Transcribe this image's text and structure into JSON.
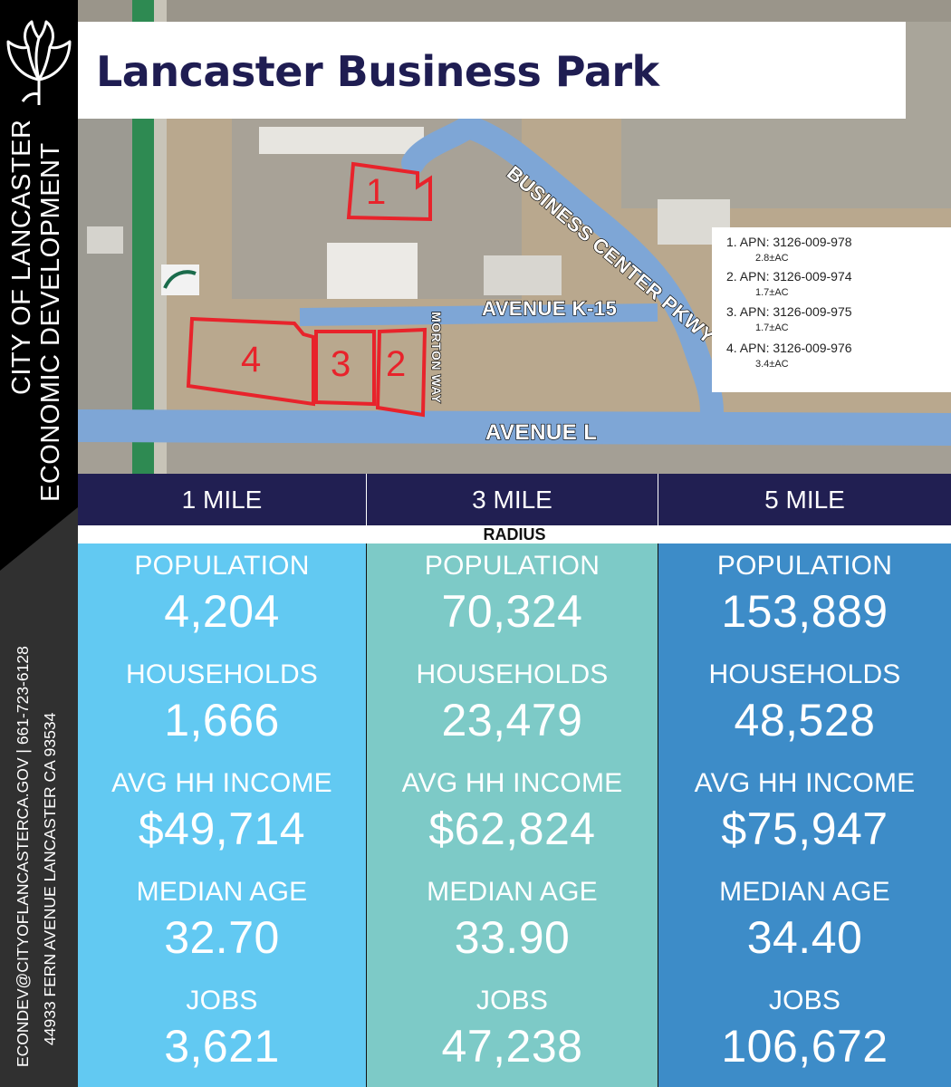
{
  "organization": {
    "line1": "CITY OF LANCASTER",
    "line2": "ECONOMIC DEVELOPMENT",
    "contact_line1": "ECONDEV@CITYOFLANCASTERCA.GOV | 661-723-6128",
    "contact_line2": "44933 FERN AVENUE LANCASTER CA 93534",
    "logo_icon": "poppy-flower-icon"
  },
  "title": "Lancaster Business Park",
  "map": {
    "roads": {
      "business_center": "BUSINESS CENTER PKWY",
      "avenue_k15": "AVENUE K-15",
      "morton": "MORTON WAY",
      "avenue_l": "AVENUE L"
    },
    "parcels": [
      "1",
      "2",
      "3",
      "4"
    ],
    "parcel_color": "#e8232b",
    "apn_list": [
      {
        "label": "1. APN: 3126-009-978",
        "acres": "2.8±AC"
      },
      {
        "label": "2. APN: 3126-009-974",
        "acres": "1.7±AC"
      },
      {
        "label": "3. APN: 3126-009-975",
        "acres": "1.7±AC"
      },
      {
        "label": "4. APN: 3126-009-976",
        "acres": "3.4±AC"
      }
    ]
  },
  "radius": {
    "heading": "RADIUS",
    "columns": [
      "1 MILE",
      "3 MILE",
      "5 MILE"
    ]
  },
  "stat_labels": {
    "population": "POPULATION",
    "households": "HOUSEHOLDS",
    "income": "AVG HH INCOME",
    "age": "MEDIAN AGE",
    "jobs": "JOBS"
  },
  "stats": [
    {
      "population": "4,204",
      "households": "1,666",
      "income": "$49,714",
      "age": "32.70",
      "jobs": "3,621"
    },
    {
      "population": "70,324",
      "households": "23,479",
      "income": "$62,824",
      "age": "33.90",
      "jobs": "47,238"
    },
    {
      "population": "153,889",
      "households": "48,528",
      "income": "$75,947",
      "age": "34.40",
      "jobs": "106,672"
    }
  ],
  "colors": {
    "navy": "#211f52",
    "col_1": "#62c9f2",
    "col_2": "#7dcac7",
    "col_3": "#3d8cc8"
  }
}
